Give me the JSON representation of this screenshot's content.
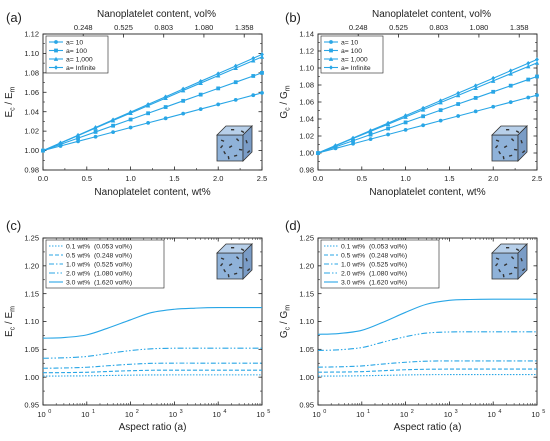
{
  "colors": {
    "series": "#29a6e6",
    "axis": "#222222",
    "cube_face": "#8fb2d9"
  },
  "icons": [
    "composite-cube-icon"
  ],
  "chart_data": [
    {
      "id": "a",
      "panel_label": "(a)",
      "type": "line",
      "xlabel": "Nanoplatelet content, wt%",
      "xlabel_top": "Nanoplatelet content, vol%",
      "ylabel": "Ec / Em",
      "ylabel_main": "E",
      "ylabel_sub_num": "c",
      "ylabel_den": "E",
      "ylabel_sub_den": "m",
      "xlim": [
        0,
        2.5
      ],
      "ylim": [
        0.98,
        1.12
      ],
      "xscale": "linear",
      "xticks": [
        0,
        0.5,
        1.0,
        1.5,
        2.0,
        2.5
      ],
      "xtick_labels": [
        "0.0",
        "0.5",
        "1.0",
        "1.5",
        "2.0",
        "2.5"
      ],
      "yticks": [
        0.98,
        1.0,
        1.02,
        1.04,
        1.06,
        1.08,
        1.1,
        1.12
      ],
      "ytick_labels": [
        "0.98",
        "1.00",
        "1.02",
        "1.04",
        "1.06",
        "1.08",
        "1.10",
        "1.12"
      ],
      "top_ticks": [
        0.459,
        0.919,
        1.378,
        1.837,
        2.297
      ],
      "top_tick_labels": [
        "0.248",
        "0.525",
        "0.803",
        "1.080",
        "1.358"
      ],
      "legend_position": "top-left",
      "x": [
        0,
        0.2,
        0.4,
        0.6,
        0.8,
        1.0,
        1.2,
        1.4,
        1.6,
        1.8,
        2.0,
        2.2,
        2.4,
        2.5
      ],
      "series": [
        {
          "name": "a= 10",
          "marker": "circle",
          "y": [
            1.0,
            1.0047,
            1.0095,
            1.0142,
            1.019,
            1.0237,
            1.0285,
            1.0332,
            1.038,
            1.0427,
            1.0475,
            1.0522,
            1.057,
            1.0594
          ]
        },
        {
          "name": "a= 100",
          "marker": "square",
          "y": [
            1.0,
            1.0064,
            1.0128,
            1.0192,
            1.0256,
            1.032,
            1.0384,
            1.0448,
            1.0512,
            1.0576,
            1.064,
            1.0704,
            1.0768,
            1.08
          ]
        },
        {
          "name": "a= 1,000",
          "marker": "triangle",
          "y": [
            1.0,
            1.0077,
            1.0154,
            1.0232,
            1.0309,
            1.0386,
            1.0463,
            1.054,
            1.0618,
            1.0695,
            1.0772,
            1.0849,
            1.0926,
            1.0965
          ]
        },
        {
          "name": "a= Infinite",
          "marker": "diamond",
          "y": [
            1.0,
            1.0079,
            1.0158,
            1.0238,
            1.0317,
            1.0396,
            1.0475,
            1.0554,
            1.0634,
            1.0713,
            1.0792,
            1.0871,
            1.095,
            1.099
          ]
        }
      ]
    },
    {
      "id": "b",
      "panel_label": "(b)",
      "type": "line",
      "xlabel": "Nanoplatelet content, wt%",
      "xlabel_top": "Nanoplatelet content, vol%",
      "ylabel": "Gc / Gm",
      "ylabel_main": "G",
      "ylabel_sub_num": "c",
      "ylabel_den": "G",
      "ylabel_sub_den": "m",
      "xlim": [
        0,
        2.5
      ],
      "ylim": [
        0.98,
        1.14
      ],
      "xscale": "linear",
      "xticks": [
        0,
        0.5,
        1.0,
        1.5,
        2.0,
        2.5
      ],
      "xtick_labels": [
        "0.0",
        "0.5",
        "1.0",
        "1.5",
        "2.0",
        "2.5"
      ],
      "yticks": [
        0.98,
        1.0,
        1.02,
        1.04,
        1.06,
        1.08,
        1.1,
        1.12,
        1.14
      ],
      "ytick_labels": [
        "0.98",
        "1.00",
        "1.02",
        "1.04",
        "1.06",
        "1.08",
        "1.10",
        "1.12",
        "1.14"
      ],
      "top_ticks": [
        0.459,
        0.919,
        1.378,
        1.837,
        2.297
      ],
      "top_tick_labels": [
        "0.248",
        "0.525",
        "0.803",
        "1.080",
        "1.358"
      ],
      "legend_position": "top-left",
      "x": [
        0,
        0.2,
        0.4,
        0.6,
        0.8,
        1.0,
        1.2,
        1.4,
        1.6,
        1.8,
        2.0,
        2.2,
        2.4,
        2.5
      ],
      "series": [
        {
          "name": "a= 10",
          "marker": "circle",
          "y": [
            1.0,
            1.0054,
            1.0109,
            1.0163,
            1.0218,
            1.0272,
            1.0326,
            1.0381,
            1.0435,
            1.049,
            1.0544,
            1.0598,
            1.0653,
            1.068
          ]
        },
        {
          "name": "a= 100",
          "marker": "square",
          "y": [
            1.0,
            1.0072,
            1.0144,
            1.0216,
            1.0288,
            1.036,
            1.0432,
            1.0504,
            1.0576,
            1.0648,
            1.072,
            1.0792,
            1.0864,
            1.09
          ]
        },
        {
          "name": "a= 1,000",
          "marker": "triangle",
          "y": [
            1.0,
            1.0085,
            1.017,
            1.0254,
            1.0339,
            1.0424,
            1.0509,
            1.0594,
            1.0678,
            1.0763,
            1.0848,
            1.0933,
            1.1018,
            1.106
          ]
        },
        {
          "name": "a= Infinite",
          "marker": "diamond",
          "y": [
            1.0,
            1.0088,
            1.0176,
            1.0264,
            1.0352,
            1.044,
            1.0528,
            1.0616,
            1.0704,
            1.0792,
            1.088,
            1.0968,
            1.1056,
            1.11
          ]
        }
      ]
    },
    {
      "id": "c",
      "panel_label": "(c)",
      "type": "line",
      "xlabel": "Aspect ratio (a)",
      "ylabel": "Ec / Em",
      "ylabel_main": "E",
      "ylabel_sub_num": "c",
      "ylabel_den": "E",
      "ylabel_sub_den": "m",
      "xscale": "log",
      "xlim": [
        1,
        100000
      ],
      "ylim": [
        0.95,
        1.25
      ],
      "xticks": [
        1,
        10,
        100,
        1000,
        10000,
        100000
      ],
      "xtick_labels": [
        "10",
        "10",
        "10",
        "10",
        "10",
        "10"
      ],
      "xtick_exponents": [
        "0",
        "1",
        "2",
        "3",
        "4",
        "5"
      ],
      "yticks": [
        0.95,
        1.0,
        1.05,
        1.1,
        1.15,
        1.2,
        1.25
      ],
      "ytick_labels": [
        "0.95",
        "1.00",
        "1.05",
        "1.10",
        "1.15",
        "1.20",
        "1.25"
      ],
      "legend_position": "top-left",
      "x": [
        1,
        3,
        10,
        30,
        100,
        300,
        1000,
        3000,
        10000,
        100000
      ],
      "series": [
        {
          "name": "0.1 wt%  (0.053 vol%)",
          "dash": "1.5,1.5",
          "y": [
            1.002,
            1.0021,
            1.0024,
            1.003,
            1.0036,
            1.004,
            1.0041,
            1.0041,
            1.0041,
            1.0041
          ]
        },
        {
          "name": "0.5 wt%  (0.248 vol%)",
          "dash": "4,2",
          "y": [
            1.008,
            1.0082,
            1.0088,
            1.0102,
            1.0116,
            1.0124,
            1.0126,
            1.0126,
            1.0126,
            1.0126
          ]
        },
        {
          "name": "1.0 wt%  (0.525 vol%)",
          "dash": "5,2,1.5,2",
          "y": [
            1.016,
            1.0165,
            1.0178,
            1.0205,
            1.0232,
            1.0248,
            1.0252,
            1.0252,
            1.0252,
            1.0252
          ]
        },
        {
          "name": "2.0 wt%  (1.080 vol%)",
          "dash": "6,2,1.5,2,1.5,2",
          "y": [
            1.034,
            1.0348,
            1.0372,
            1.0425,
            1.0478,
            1.051,
            1.052,
            1.052,
            1.052,
            1.052
          ]
        },
        {
          "name": "3.0 wt%  (1.620 vol%)",
          "dash": "",
          "y": [
            1.07,
            1.0712,
            1.076,
            1.088,
            1.103,
            1.116,
            1.122,
            1.124,
            1.125,
            1.125
          ]
        }
      ]
    },
    {
      "id": "d",
      "panel_label": "(d)",
      "type": "line",
      "xlabel": "Aspect ratio (a)",
      "ylabel": "Gc / Gm",
      "ylabel_main": "G",
      "ylabel_sub_num": "c",
      "ylabel_den": "G",
      "ylabel_sub_den": "m",
      "xscale": "log",
      "xlim": [
        1,
        100000
      ],
      "ylim": [
        0.95,
        1.25
      ],
      "xticks": [
        1,
        10,
        100,
        1000,
        10000,
        100000
      ],
      "xtick_labels": [
        "10",
        "10",
        "10",
        "10",
        "10",
        "10"
      ],
      "xtick_exponents": [
        "0",
        "1",
        "2",
        "3",
        "4",
        "5"
      ],
      "yticks": [
        0.95,
        1.0,
        1.05,
        1.1,
        1.15,
        1.2,
        1.25
      ],
      "ytick_labels": [
        "0.95",
        "1.00",
        "1.05",
        "1.10",
        "1.15",
        "1.20",
        "1.25"
      ],
      "legend_position": "top-left",
      "x": [
        1,
        3,
        10,
        30,
        100,
        300,
        1000,
        3000,
        10000,
        100000
      ],
      "series": [
        {
          "name": "0.1 wt%  (0.053 vol%)",
          "dash": "1.5,1.5",
          "y": [
            1.002,
            1.0021,
            1.0025,
            1.0032,
            1.004,
            1.0045,
            1.0046,
            1.0046,
            1.0046,
            1.0046
          ]
        },
        {
          "name": "0.5 wt%  (0.248 vol%)",
          "dash": "4,2",
          "y": [
            1.009,
            1.0092,
            1.0099,
            1.0116,
            1.0133,
            1.0142,
            1.0145,
            1.0145,
            1.0145,
            1.0145
          ]
        },
        {
          "name": "1.0 wt%  (0.525 vol%)",
          "dash": "5,2,1.5,2",
          "y": [
            1.018,
            1.0186,
            1.0202,
            1.0236,
            1.0268,
            1.0287,
            1.0292,
            1.0292,
            1.0292,
            1.0292
          ]
        },
        {
          "name": "2.0 wt%  (1.080 vol%)",
          "dash": "6,2,1.5,2,1.5,2",
          "y": [
            1.048,
            1.0492,
            1.0532,
            1.0628,
            1.0728,
            1.0792,
            1.0812,
            1.0815,
            1.0815,
            1.0815
          ]
        },
        {
          "name": "3.0 wt%  (1.620 vol%)",
          "dash": "",
          "y": [
            1.077,
            1.0784,
            1.0842,
            1.0985,
            1.1165,
            1.131,
            1.138,
            1.1395,
            1.14,
            1.14
          ]
        }
      ]
    }
  ]
}
